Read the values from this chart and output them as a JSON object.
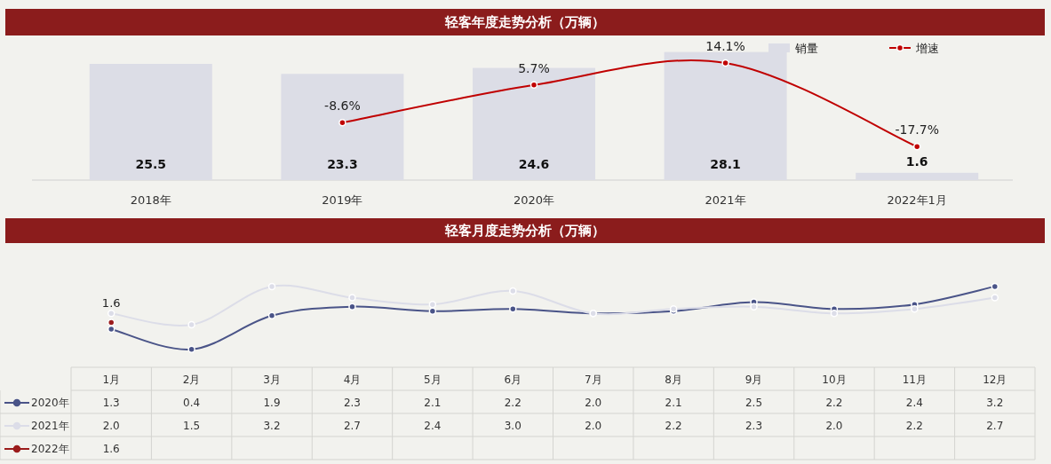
{
  "chart_data": [
    {
      "type": "bar",
      "title": "轻客年度走势分析（万辆）",
      "categories": [
        "2018年",
        "2019年",
        "2020年",
        "2021年",
        "2022年1月"
      ],
      "tick_labels": "x",
      "legend": "top right",
      "marker": "circle",
      "series": [
        {
          "name": "销量",
          "type": "bar",
          "color": "#dcdde6",
          "values": [
            25.5,
            23.3,
            24.6,
            28.1,
            1.6
          ],
          "value_labels": [
            "25.5",
            "23.3",
            "24.6",
            "28.1",
            "1.6"
          ]
        },
        {
          "name": "增速",
          "type": "line",
          "axis": "y2",
          "color": "#c00000",
          "values": [
            null,
            -8.6,
            5.7,
            14.1,
            -17.7
          ],
          "value_labels": [
            null,
            "-8.6%",
            "5.7%",
            "14.1%",
            "-17.7%"
          ]
        }
      ]
    },
    {
      "type": "line",
      "title": "轻客月度走势分析（万辆）",
      "categories": [
        "1月",
        "2月",
        "3月",
        "4月",
        "5月",
        "6月",
        "7月",
        "8月",
        "9月",
        "10月",
        "11月",
        "12月"
      ],
      "tick_labels": "x",
      "legend": "bottom left",
      "marker": "circle",
      "series": [
        {
          "name": "2020年",
          "color": "#4a5488",
          "values": [
            1.3,
            0.4,
            1.9,
            2.3,
            2.1,
            2.2,
            2.0,
            2.1,
            2.5,
            2.2,
            2.4,
            3.2
          ],
          "value_labels": [
            "1.3",
            "0.4",
            "1.9",
            "2.3",
            "2.1",
            "2.2",
            "2.0",
            "2.1",
            "2.5",
            "2.2",
            "2.4",
            "3.2"
          ]
        },
        {
          "name": "2021年",
          "color": "#dcdde8",
          "values": [
            2.0,
            1.5,
            3.2,
            2.7,
            2.4,
            3.0,
            2.0,
            2.2,
            2.3,
            2.0,
            2.2,
            2.7
          ],
          "value_labels": [
            "2.0",
            "1.5",
            "3.2",
            "2.7",
            "2.4",
            "3.0",
            "2.0",
            "2.2",
            "2.3",
            "2.0",
            "2.2",
            "2.7"
          ]
        },
        {
          "name": "2022年",
          "color": "#9b1c1c",
          "values": [
            1.6,
            null,
            null,
            null,
            null,
            null,
            null,
            null,
            null,
            null,
            null,
            null
          ],
          "value_labels": [
            "1.6",
            null,
            null,
            null,
            null,
            null,
            null,
            null,
            null,
            null,
            null,
            null
          ]
        }
      ]
    }
  ]
}
